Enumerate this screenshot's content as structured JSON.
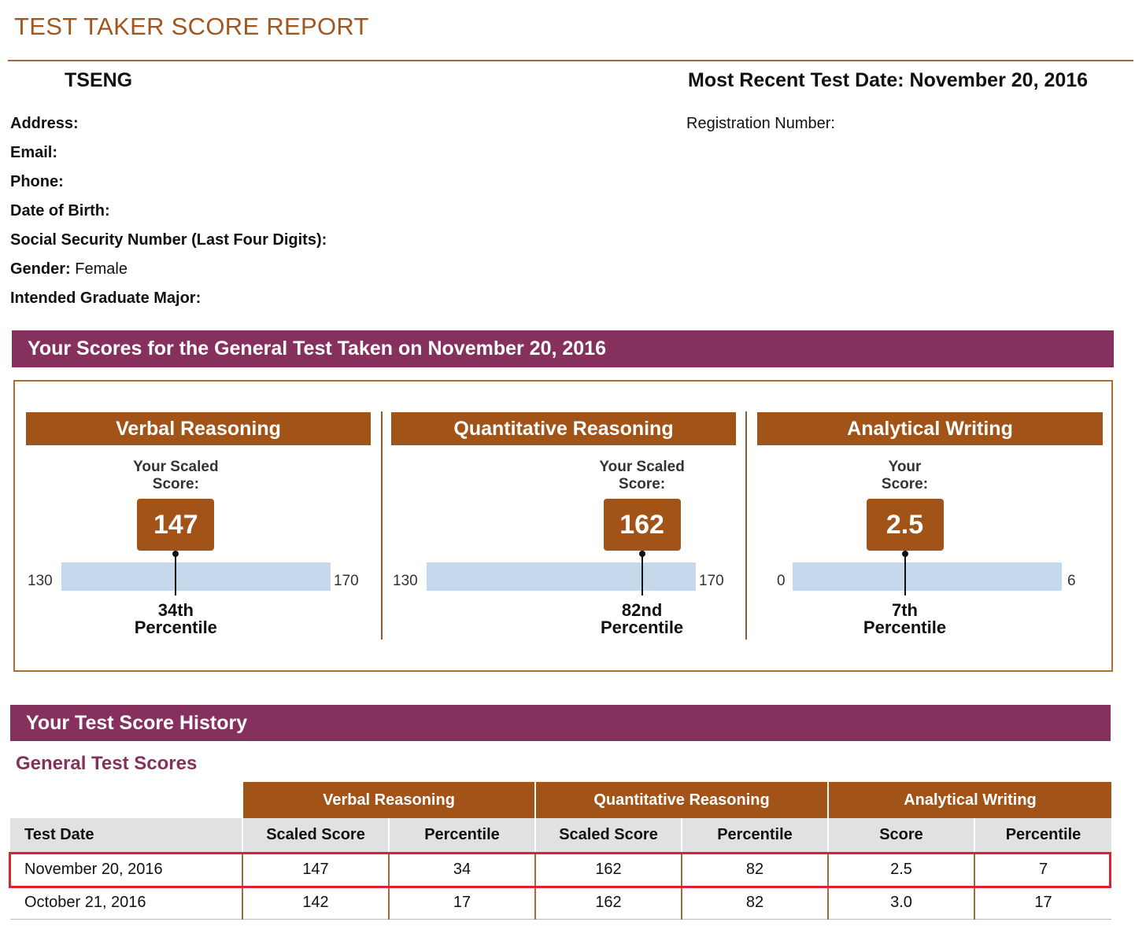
{
  "report_title": "TEST TAKER SCORE REPORT",
  "header": {
    "name": "TSENG",
    "recent_label": "Most Recent Test Date:",
    "recent_date": "November 20, 2016",
    "registration_label": "Registration Number:"
  },
  "fields": {
    "address": "Address:",
    "email": "Email:",
    "phone": "Phone:",
    "dob": "Date of Birth:",
    "ssn": "Social Security Number (Last Four Digits):",
    "gender_label": "Gender:",
    "gender_value": "Female",
    "major": "Intended Graduate Major:"
  },
  "scores_band": "Your Scores for the General Test Taken on November 20, 2016",
  "sections": [
    {
      "title": "Verbal Reasoning",
      "caption_1": "Your Scaled",
      "caption_2": "Score:",
      "score": "147",
      "min": "130",
      "max": "170",
      "score_value": 147,
      "range_min": 130,
      "range_max": 170,
      "pct_1": "34th",
      "pct_2": "Percentile"
    },
    {
      "title": "Quantitative Reasoning",
      "caption_1": "Your Scaled",
      "caption_2": "Score:",
      "score": "162",
      "min": "130",
      "max": "170",
      "score_value": 162,
      "range_min": 130,
      "range_max": 170,
      "pct_1": "82nd",
      "pct_2": "Percentile"
    },
    {
      "title": "Analytical Writing",
      "caption_1": "Your",
      "caption_2": "Score:",
      "score": "2.5",
      "min": "0",
      "max": "6",
      "score_value": 2.5,
      "range_min": 0,
      "range_max": 6,
      "pct_1": "7th",
      "pct_2": "Percentile"
    }
  ],
  "history_band": "Your Test Score History",
  "history_subtitle": "General Test Scores",
  "history": {
    "groups": [
      "Verbal Reasoning",
      "Quantitative Reasoning",
      "Analytical Writing"
    ],
    "columns": [
      "Test Date",
      "Scaled Score",
      "Percentile",
      "Scaled Score",
      "Percentile",
      "Score",
      "Percentile"
    ],
    "rows": [
      [
        "November 20, 2016",
        "147",
        "34",
        "162",
        "82",
        "2.5",
        "7"
      ],
      [
        "October 21, 2016",
        "142",
        "17",
        "162",
        "82",
        "3.0",
        "17"
      ]
    ]
  },
  "colors": {
    "accent": "#a25318",
    "band": "#86305e",
    "bar": "#c6d9ec",
    "highlight": "#e0202c"
  }
}
